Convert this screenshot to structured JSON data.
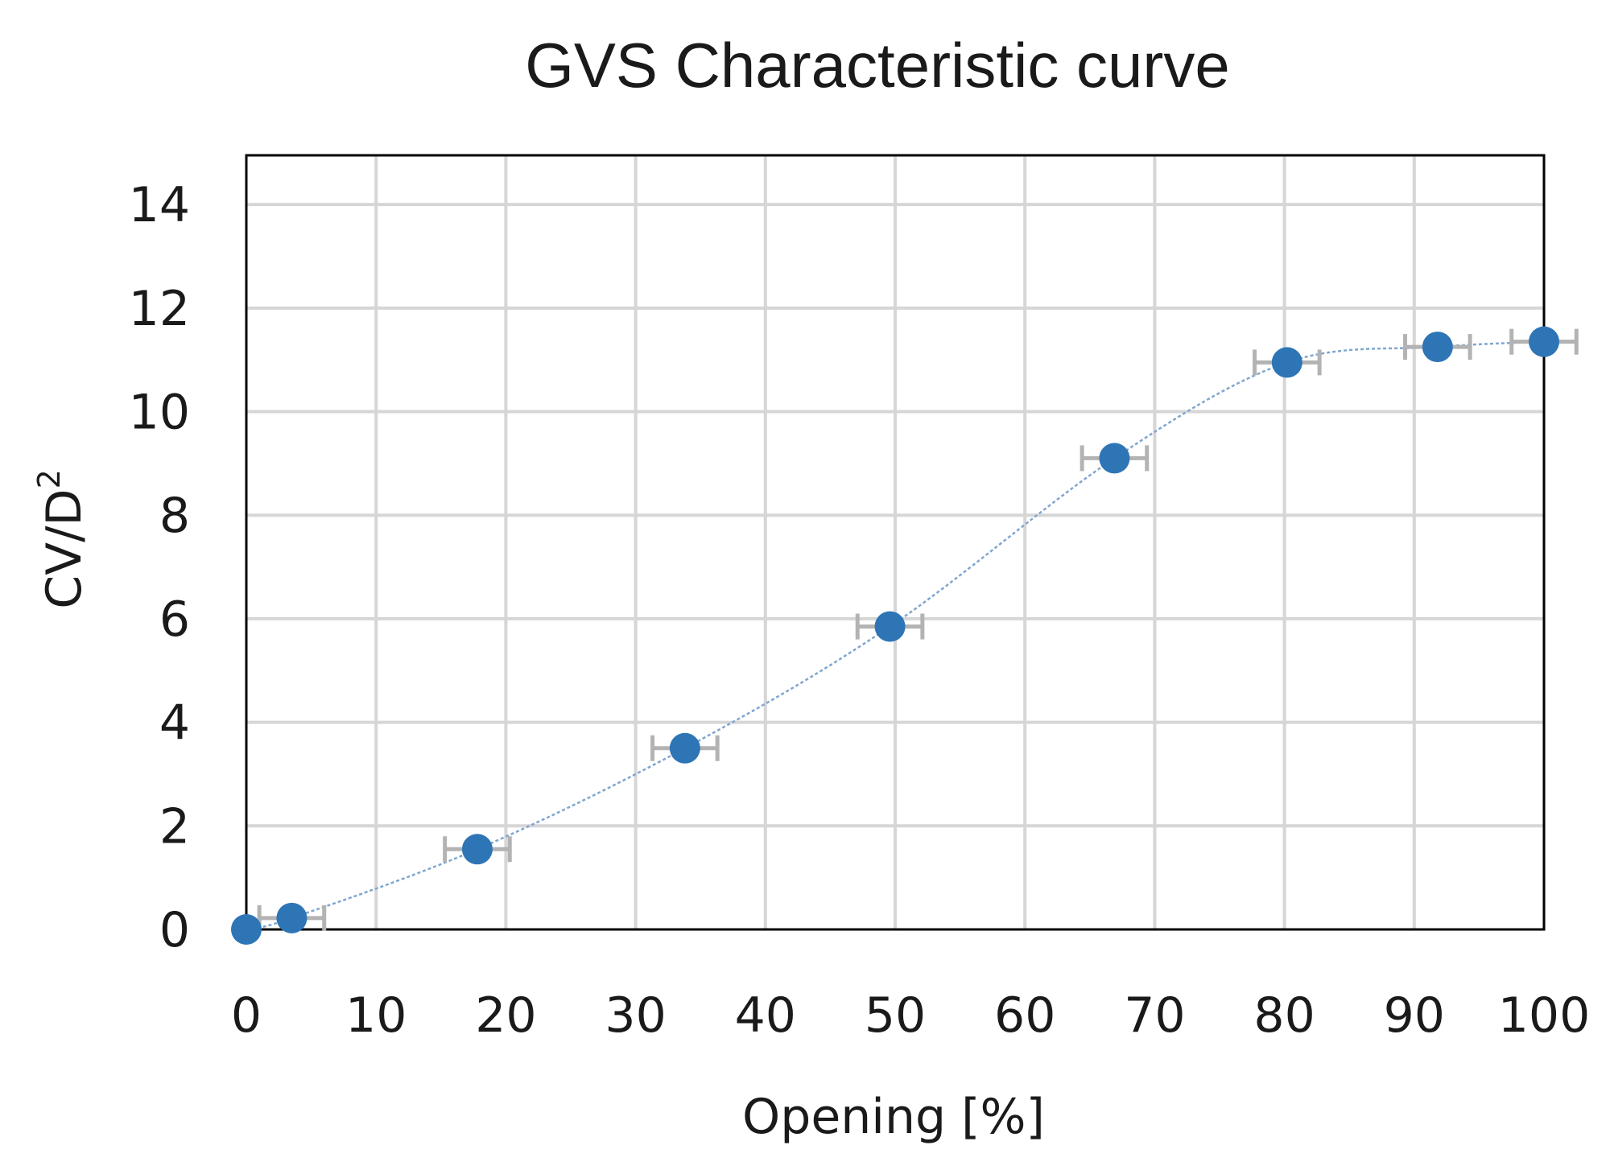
{
  "colors": {
    "marker": "#2e75b6",
    "error_bar": "#b3b3b3",
    "grid": "#d6d6d6",
    "trend": "#7fa6cf"
  },
  "chart_data": {
    "type": "scatter",
    "title": "GVS Characteristic curve",
    "xlabel": "Opening [%]",
    "ylabel_base": "CV/D",
    "ylabel_sup": "2",
    "xlim": [
      0,
      100
    ],
    "ylim": [
      0,
      15
    ],
    "x_ticks": [
      0,
      10,
      20,
      30,
      40,
      50,
      60,
      70,
      80,
      90,
      100
    ],
    "y_ticks": [
      0,
      2,
      4,
      6,
      8,
      10,
      12,
      14
    ],
    "grid": true,
    "legend": "none",
    "series": [
      {
        "x": [
          0,
          3.5,
          17.8,
          33.8,
          49.6,
          66.9,
          80.2,
          91.8,
          100
        ],
        "y": [
          0,
          0.22,
          1.55,
          3.5,
          5.85,
          9.1,
          10.95,
          11.25,
          11.35
        ],
        "x_error": [
          0,
          2.5,
          2.5,
          2.5,
          2.5,
          2.5,
          2.5,
          2.5,
          2.5
        ]
      }
    ]
  }
}
